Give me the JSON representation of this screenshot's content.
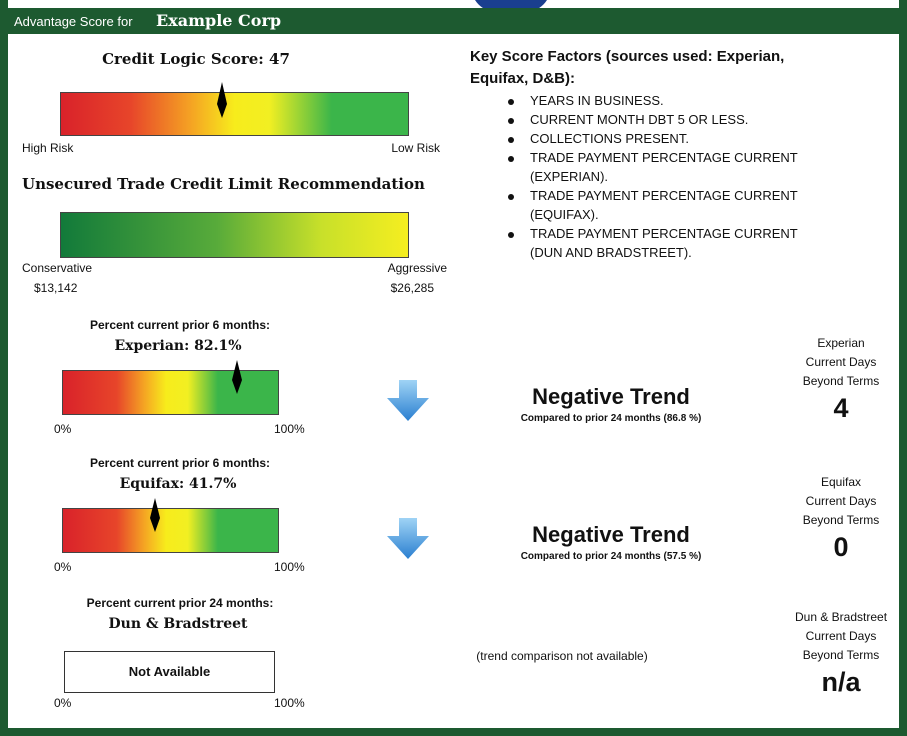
{
  "header": {
    "prefix": "Advantage Score for",
    "company": "Example Corp"
  },
  "credit_logic": {
    "title": "Credit Logic Score: 47",
    "low_label": "High Risk",
    "high_label": "Low Risk"
  },
  "credit_limit": {
    "title": "Unsecured Trade Credit Limit Recommendation",
    "low_label": "Conservative",
    "low_value": "$13,142",
    "high_label": "Aggressive",
    "high_value": "$26,285"
  },
  "factors": {
    "title_line1": "Key Score Factors (sources used: Experian,",
    "title_line2": "Equifax, D&B):",
    "items": [
      [
        "YEARS IN BUSINESS."
      ],
      [
        "CURRENT MONTH DBT 5 OR LESS."
      ],
      [
        "COLLECTIONS PRESENT."
      ],
      [
        "TRADE PAYMENT PERCENTAGE CURRENT",
        "(EXPERIAN)."
      ],
      [
        "TRADE PAYMENT PERCENTAGE CURRENT",
        "(EQUIFAX)."
      ],
      [
        "TRADE PAYMENT PERCENTAGE CURRENT",
        "(DUN AND BRADSTREET)."
      ]
    ]
  },
  "sections": [
    {
      "caption": "Percent current prior 6 months:",
      "source": "Experian: 82.1%",
      "min": "0%",
      "max": "100%",
      "trend": "Negative Trend",
      "comparison": "Compared to prior 24 months (86.8 %)",
      "dbt_lines": [
        "Experian",
        "Current Days",
        "Beyond Terms"
      ],
      "dbt_value": "4"
    },
    {
      "caption": "Percent current prior 6 months:",
      "source": "Equifax: 41.7%",
      "min": "0%",
      "max": "100%",
      "trend": "Negative Trend",
      "comparison": "Compared to prior 24 months (57.5 %)",
      "dbt_lines": [
        "Equifax",
        "Current Days",
        "Beyond Terms"
      ],
      "dbt_value": "0"
    },
    {
      "caption": "Percent current prior 24 months:",
      "source": "Dun & Bradstreet",
      "min": "0%",
      "max": "100%",
      "box": "Not Available",
      "trend_note": "(trend comparison not available)",
      "dbt_lines": [
        "Dun & Bradstreet",
        "Current Days",
        "Beyond Terms"
      ],
      "dbt_value": "n/a"
    }
  ]
}
